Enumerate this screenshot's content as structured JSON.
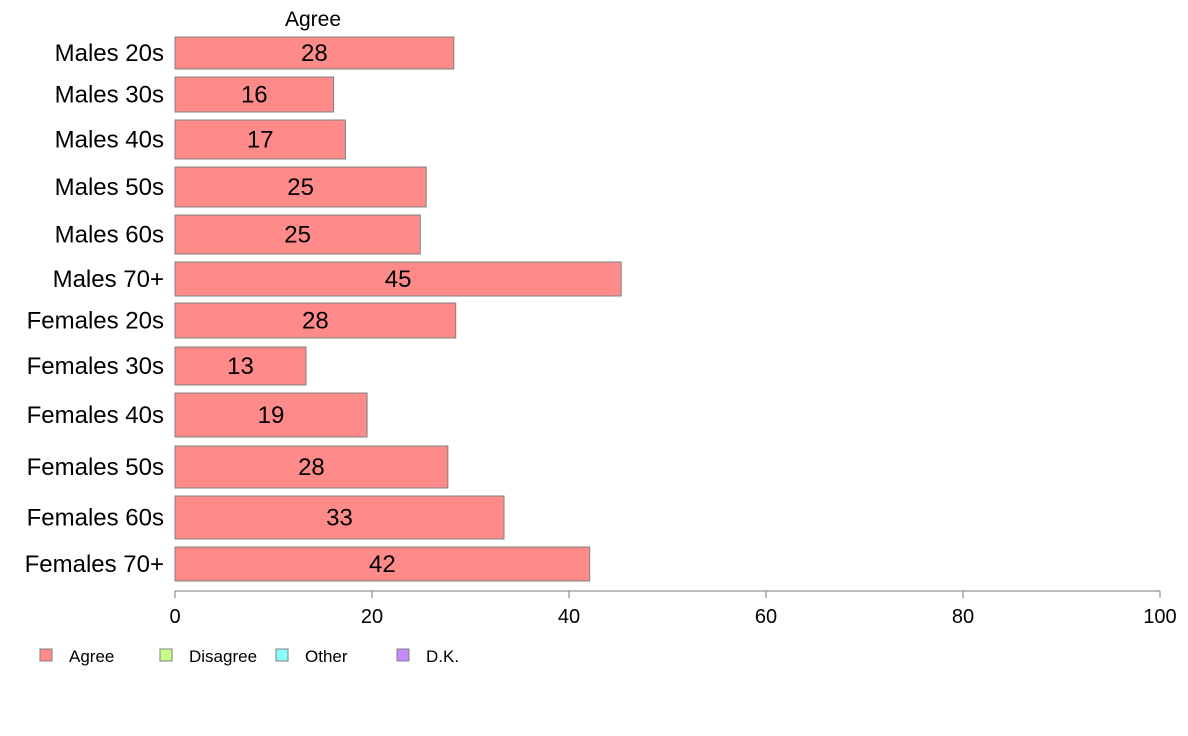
{
  "chart_data": {
    "type": "bar",
    "orientation": "horizontal",
    "title": "Agree",
    "categories": [
      "Males 20s",
      "Males 30s",
      "Males 40s",
      "Males 50s",
      "Males 60s",
      "Males 70+",
      "Females 20s",
      "Females 30s",
      "Females 40s",
      "Females 50s",
      "Females 60s",
      "Females 70+"
    ],
    "series": [
      {
        "name": "Agree",
        "color": "#ff8a8a",
        "values": [
          28.3,
          16.1,
          17.3,
          25.5,
          24.9,
          45.3,
          28.5,
          13.3,
          19.5,
          27.7,
          33.4,
          42.1
        ],
        "labels": [
          "28",
          "16",
          "17",
          "25",
          "25",
          "45",
          "28",
          "13",
          "19",
          "28",
          "33",
          "42"
        ]
      }
    ],
    "xlim": [
      0,
      100
    ],
    "xticks": [
      0,
      20,
      40,
      60,
      80,
      100
    ],
    "grid": false,
    "legend": {
      "position": "bottom-left",
      "items": [
        {
          "label": "Agree",
          "color": "#ff8a8a"
        },
        {
          "label": "Disagree",
          "color": "#c6ff8a"
        },
        {
          "label": "Other",
          "color": "#8affff"
        },
        {
          "label": "D.K.",
          "color": "#c68aff"
        }
      ]
    }
  }
}
